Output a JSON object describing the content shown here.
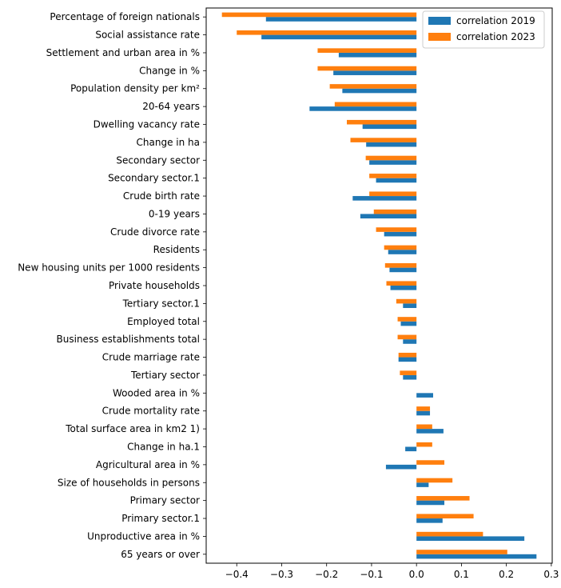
{
  "chart_data": {
    "type": "bar",
    "orientation": "horizontal",
    "categories": [
      "Percentage of foreign nationals",
      "Social assistance rate",
      "Settlement and urban area in %",
      "Change in %",
      "Population density per km²",
      "20-64 years",
      "Dwelling vacancy rate",
      "Change in ha",
      "Secondary sector",
      "Secondary sector.1",
      "Crude birth rate",
      "0-19 years",
      "Crude divorce rate",
      "Residents",
      "New housing units per 1000 residents",
      "Private households",
      "Tertiary sector.1",
      "Employed total",
      "Business establishments total",
      "Crude marriage rate",
      "Tertiary sector",
      "Wooded area in %",
      "Crude mortality rate",
      "Total surface area in km2  1)",
      "Change in ha.1",
      "Agricultural area in %",
      "Size of households in persons",
      "Primary sector",
      "Primary sector.1",
      "Unproductive area in %",
      "65 years or over"
    ],
    "series": [
      {
        "name": "correlation 2019",
        "color": "#1f77b4",
        "values": [
          -0.335,
          -0.345,
          -0.173,
          -0.185,
          -0.165,
          -0.238,
          -0.12,
          -0.112,
          -0.105,
          -0.09,
          -0.142,
          -0.125,
          -0.072,
          -0.063,
          -0.06,
          -0.058,
          -0.03,
          -0.035,
          -0.03,
          -0.04,
          -0.03,
          0.037,
          0.03,
          0.06,
          -0.025,
          -0.068,
          0.027,
          0.062,
          0.058,
          0.24,
          0.267
        ]
      },
      {
        "name": "correlation 2023",
        "color": "#ff7f0e",
        "values": [
          -0.433,
          -0.4,
          -0.22,
          -0.22,
          -0.193,
          -0.182,
          -0.155,
          -0.147,
          -0.113,
          -0.105,
          -0.105,
          -0.095,
          -0.09,
          -0.072,
          -0.07,
          -0.067,
          -0.045,
          -0.042,
          -0.042,
          -0.04,
          -0.037,
          0.0,
          0.03,
          0.035,
          0.035,
          0.062,
          0.08,
          0.118,
          0.127,
          0.148,
          0.202
        ]
      }
    ],
    "xticks": [
      "−0.4",
      "−0.3",
      "−0.2",
      "−0.1",
      "0.0",
      "0.1",
      "0.2",
      "0.3"
    ],
    "xtick_values": [
      -0.4,
      -0.3,
      -0.2,
      -0.1,
      0.0,
      0.1,
      0.2,
      0.3
    ],
    "xlim": [
      -0.468,
      0.302
    ],
    "legend_position": "top-right",
    "grid": false
  }
}
